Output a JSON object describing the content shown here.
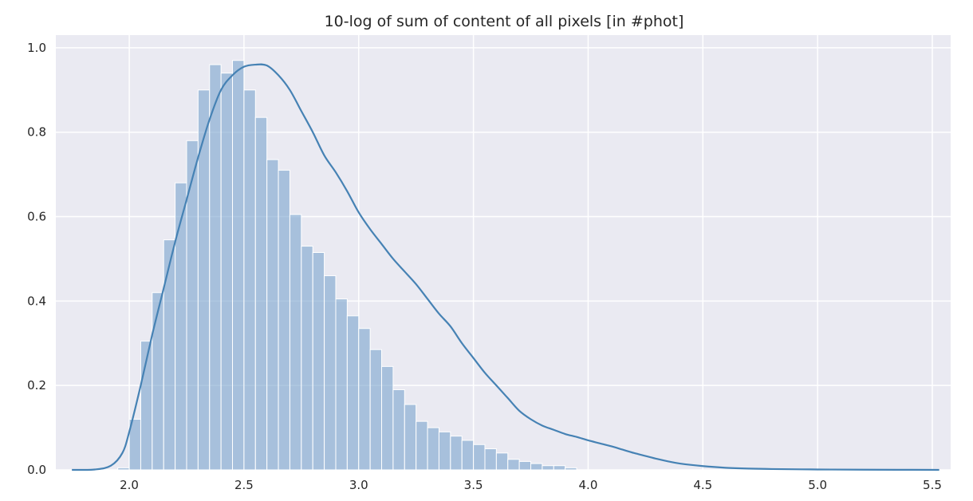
{
  "chart_data": {
    "type": "bar",
    "title": "10-log of sum of content of all pixels [in #phot]",
    "xlabel": "",
    "ylabel": "",
    "xlim": [
      1.68,
      5.58
    ],
    "ylim": [
      0,
      1.03
    ],
    "grid": true,
    "x_ticks": [
      2.0,
      2.5,
      3.0,
      3.5,
      4.0,
      4.5,
      5.0,
      5.5
    ],
    "x_tick_labels": [
      "2.0",
      "2.5",
      "3.0",
      "3.5",
      "4.0",
      "4.5",
      "5.0",
      "5.5"
    ],
    "y_ticks": [
      0.0,
      0.2,
      0.4,
      0.6,
      0.8,
      1.0
    ],
    "y_tick_labels": [
      "0.0",
      "0.2",
      "0.4",
      "0.6",
      "0.8",
      "1.0"
    ],
    "histogram": {
      "bin_start": 1.95,
      "bin_width": 0.05,
      "values": [
        0.005,
        0.12,
        0.305,
        0.42,
        0.545,
        0.68,
        0.78,
        0.9,
        0.96,
        0.94,
        0.97,
        0.9,
        0.835,
        0.735,
        0.71,
        0.605,
        0.53,
        0.515,
        0.46,
        0.405,
        0.365,
        0.335,
        0.285,
        0.245,
        0.19,
        0.155,
        0.115,
        0.1,
        0.09,
        0.08,
        0.07,
        0.06,
        0.05,
        0.04,
        0.025,
        0.02,
        0.015,
        0.01,
        0.01,
        0.005
      ]
    },
    "kde": {
      "x": [
        1.75,
        1.85,
        1.92,
        1.97,
        2.0,
        2.05,
        2.1,
        2.15,
        2.2,
        2.25,
        2.3,
        2.35,
        2.4,
        2.45,
        2.5,
        2.55,
        2.6,
        2.65,
        2.7,
        2.75,
        2.8,
        2.85,
        2.9,
        2.95,
        3.0,
        3.05,
        3.1,
        3.15,
        3.2,
        3.25,
        3.3,
        3.35,
        3.4,
        3.45,
        3.5,
        3.55,
        3.6,
        3.65,
        3.7,
        3.75,
        3.8,
        3.85,
        3.9,
        3.95,
        4.0,
        4.05,
        4.1,
        4.15,
        4.2,
        4.25,
        4.3,
        4.35,
        4.4,
        4.5,
        4.6,
        4.7,
        4.8,
        5.0,
        5.2,
        5.53
      ],
      "y": [
        0.0,
        0.001,
        0.01,
        0.04,
        0.09,
        0.2,
        0.32,
        0.43,
        0.54,
        0.64,
        0.74,
        0.83,
        0.9,
        0.935,
        0.955,
        0.96,
        0.958,
        0.935,
        0.9,
        0.85,
        0.8,
        0.745,
        0.705,
        0.66,
        0.61,
        0.57,
        0.535,
        0.5,
        0.47,
        0.44,
        0.405,
        0.37,
        0.34,
        0.3,
        0.265,
        0.23,
        0.2,
        0.17,
        0.14,
        0.12,
        0.105,
        0.095,
        0.085,
        0.078,
        0.07,
        0.063,
        0.056,
        0.048,
        0.04,
        0.033,
        0.026,
        0.02,
        0.015,
        0.009,
        0.005,
        0.003,
        0.002,
        0.001,
        0.0005,
        0.0
      ]
    }
  },
  "colors": {
    "axes_background": "#eaeaf2",
    "bar": "#7ea7cf",
    "kde_line": "#4682b4"
  }
}
